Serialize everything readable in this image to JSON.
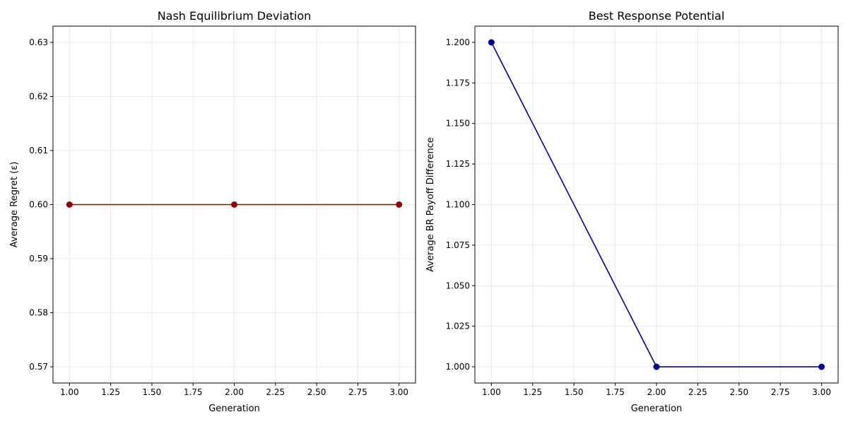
{
  "chart_data": [
    {
      "type": "line",
      "title": "Nash Equilibrium Deviation",
      "xlabel": "Generation",
      "ylabel": "Average Regret (ε)",
      "xlim": [
        0.9,
        3.1
      ],
      "ylim": [
        0.567,
        0.633
      ],
      "xticks": [
        1.0,
        1.25,
        1.5,
        1.75,
        2.0,
        2.25,
        2.5,
        2.75,
        3.0
      ],
      "xtick_labels": [
        "1.00",
        "1.25",
        "1.50",
        "1.75",
        "2.00",
        "2.25",
        "2.50",
        "2.75",
        "3.00"
      ],
      "yticks": [
        0.57,
        0.58,
        0.59,
        0.6,
        0.61,
        0.62,
        0.63
      ],
      "ytick_labels": [
        "0.57",
        "0.58",
        "0.59",
        "0.60",
        "0.61",
        "0.62",
        "0.63"
      ],
      "grid": true,
      "color": "#8b0000",
      "marker": "circle",
      "x": [
        1,
        2,
        3
      ],
      "y": [
        0.6,
        0.6,
        0.6
      ]
    },
    {
      "type": "line",
      "title": "Best Response Potential",
      "xlabel": "Generation",
      "ylabel": "Average BR Payoff Difference",
      "xlim": [
        0.9,
        3.1
      ],
      "ylim": [
        0.99,
        1.21
      ],
      "xticks": [
        1.0,
        1.25,
        1.5,
        1.75,
        2.0,
        2.25,
        2.5,
        2.75,
        3.0
      ],
      "xtick_labels": [
        "1.00",
        "1.25",
        "1.50",
        "1.75",
        "2.00",
        "2.25",
        "2.50",
        "2.75",
        "3.00"
      ],
      "yticks": [
        1.0,
        1.025,
        1.05,
        1.075,
        1.1,
        1.125,
        1.15,
        1.175,
        1.2
      ],
      "ytick_labels": [
        "1.000",
        "1.025",
        "1.050",
        "1.075",
        "1.100",
        "1.125",
        "1.150",
        "1.175",
        "1.200"
      ],
      "grid": true,
      "color": "#00008b",
      "marker": "circle",
      "x": [
        1,
        2,
        3
      ],
      "y": [
        1.2,
        1.0,
        1.0
      ]
    }
  ]
}
